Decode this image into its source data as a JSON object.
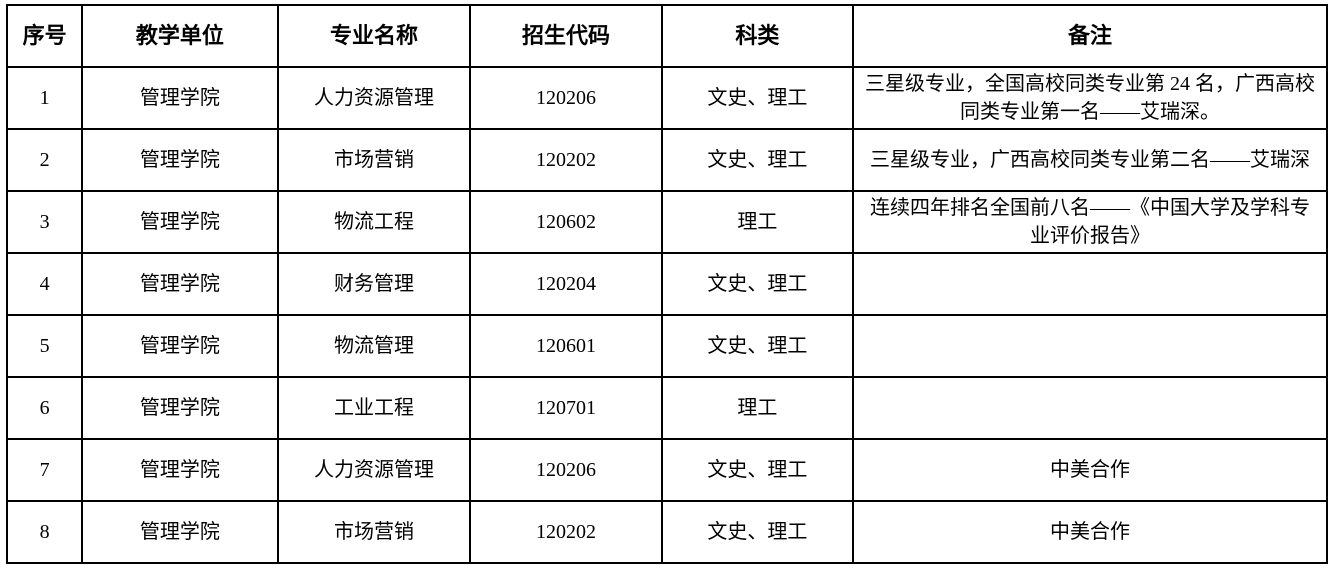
{
  "table": {
    "headers": [
      "序号",
      "教学单位",
      "专业名称",
      "招生代码",
      "科类",
      "备注"
    ],
    "rows": [
      [
        "1",
        "管理学院",
        "人力资源管理",
        "120206",
        "文史、理工",
        "三星级专业，全国高校同类专业第 24 名，广西高校同类专业第一名——艾瑞深。"
      ],
      [
        "2",
        "管理学院",
        "市场营销",
        "120202",
        "文史、理工",
        "三星级专业，广西高校同类专业第二名——艾瑞深"
      ],
      [
        "3",
        "管理学院",
        "物流工程",
        "120602",
        "理工",
        "连续四年排名全国前八名——《中国大学及学科专业评价报告》"
      ],
      [
        "4",
        "管理学院",
        "财务管理",
        "120204",
        "文史、理工",
        ""
      ],
      [
        "5",
        "管理学院",
        "物流管理",
        "120601",
        "文史、理工",
        ""
      ],
      [
        "6",
        "管理学院",
        "工业工程",
        "120701",
        "理工",
        ""
      ],
      [
        "7",
        "管理学院",
        "人力资源管理",
        "120206",
        "文史、理工",
        "中美合作"
      ],
      [
        "8",
        "管理学院",
        "市场营销",
        "120202",
        "文史、理工",
        "中美合作"
      ]
    ],
    "colors": {
      "border": "#000000",
      "text": "#000000",
      "background": "#ffffff"
    }
  }
}
